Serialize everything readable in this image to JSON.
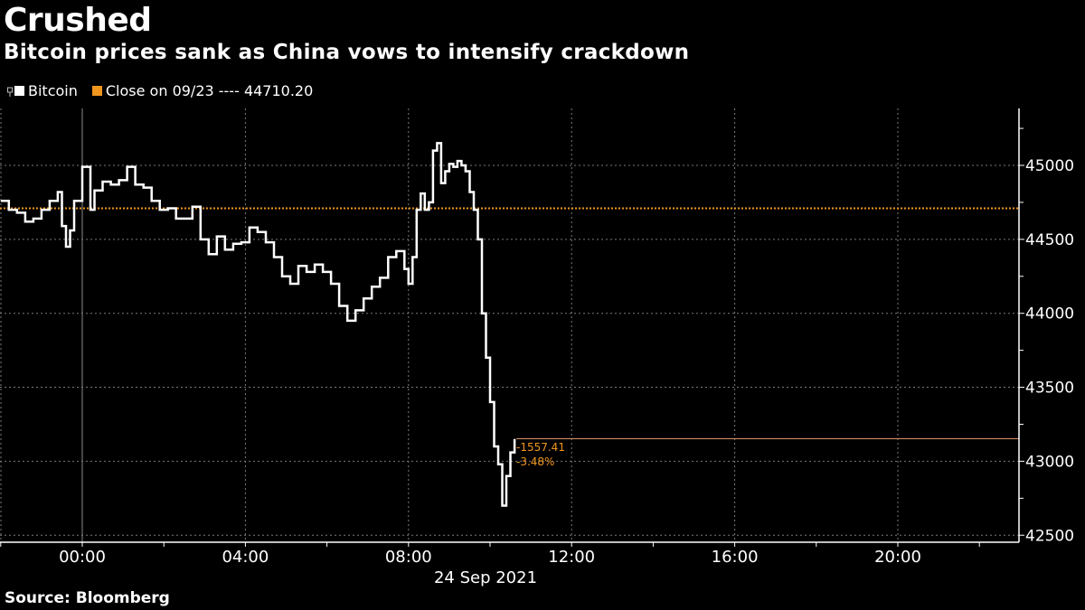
{
  "header": {
    "title": "Crushed",
    "subtitle": "Bitcoin prices sank as China vows to intensify crackdown"
  },
  "legend": {
    "series_label": "Bitcoin",
    "close_label": "Close on 09/23 ---- 44710.20"
  },
  "annotation": {
    "change_abs": "-1557.41",
    "change_pct": "-3.48%"
  },
  "footer": {
    "source": "Source: Bloomberg"
  },
  "colors": {
    "background": "#000000",
    "line": "#ffffff",
    "accent": "#f0961e",
    "grid": "#7a7a7a"
  },
  "chart_data": {
    "type": "line",
    "title": "Crushed",
    "subtitle": "Bitcoin prices sank as China vows to intensify crackdown",
    "xlabel": "24 Sep 2021",
    "ylabel": "",
    "x_tick_labels": [
      "00:00",
      "04:00",
      "08:00",
      "12:00",
      "16:00",
      "20:00"
    ],
    "y_tick_labels": [
      "42500",
      "43000",
      "43500",
      "44000",
      "44500",
      "45000"
    ],
    "ylim": [
      42450,
      45400
    ],
    "xlim_hours": [
      -2.0,
      23.0
    ],
    "grid": true,
    "legend_position": "top-left",
    "reference_line": {
      "label": "Close on 09/23",
      "value": 44710.2
    },
    "last_value_annotation": {
      "change": -1557.41,
      "change_pct": -3.48,
      "value": 43152.79
    },
    "series": [
      {
        "name": "Bitcoin",
        "x_hours": [
          -2.0,
          -1.8,
          -1.6,
          -1.4,
          -1.2,
          -1.0,
          -0.8,
          -0.6,
          -0.5,
          -0.4,
          -0.3,
          -0.2,
          0.0,
          0.2,
          0.3,
          0.5,
          0.7,
          0.9,
          1.1,
          1.3,
          1.5,
          1.7,
          1.9,
          2.1,
          2.3,
          2.5,
          2.7,
          2.9,
          3.1,
          3.3,
          3.5,
          3.7,
          3.9,
          4.1,
          4.3,
          4.5,
          4.7,
          4.9,
          5.1,
          5.3,
          5.5,
          5.7,
          5.9,
          6.1,
          6.3,
          6.5,
          6.7,
          6.9,
          7.1,
          7.3,
          7.5,
          7.7,
          7.9,
          8.0,
          8.1,
          8.2,
          8.3,
          8.4,
          8.5,
          8.6,
          8.7,
          8.8,
          8.9,
          9.0,
          9.1,
          9.2,
          9.3,
          9.4,
          9.5,
          9.6,
          9.7,
          9.8,
          9.9,
          10.0,
          10.1,
          10.2,
          10.3,
          10.4,
          10.5,
          10.6
        ],
        "values": [
          44760,
          44700,
          44680,
          44620,
          44640,
          44700,
          44760,
          44820,
          44590,
          44450,
          44560,
          44760,
          44990,
          44700,
          44830,
          44890,
          44870,
          44900,
          44990,
          44870,
          44850,
          44760,
          44700,
          44710,
          44640,
          44640,
          44720,
          44500,
          44400,
          44520,
          44430,
          44470,
          44480,
          44580,
          44550,
          44480,
          44380,
          44250,
          44200,
          44320,
          44280,
          44330,
          44280,
          44200,
          44050,
          43950,
          44020,
          44100,
          44180,
          44240,
          44380,
          44420,
          44300,
          44200,
          44380,
          44700,
          44810,
          44700,
          44750,
          45100,
          45150,
          44880,
          44960,
          45010,
          44990,
          45030,
          45000,
          44960,
          44820,
          44700,
          44500,
          44000,
          43700,
          43400,
          43100,
          42980,
          42700,
          42900,
          43060,
          43150
        ]
      }
    ]
  }
}
